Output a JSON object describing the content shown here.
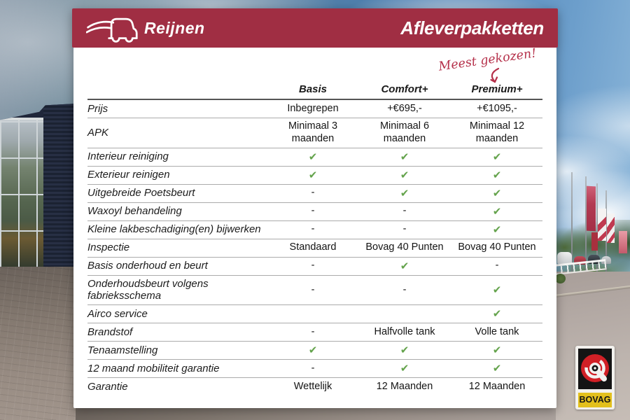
{
  "header": {
    "brand": "Reijnen",
    "title": "Afleverpakketten"
  },
  "annotation": {
    "text": "Meest gekozen!"
  },
  "table": {
    "columns": [
      "Basis",
      "Comfort+",
      "Premium+"
    ],
    "rows": [
      {
        "label": "Prijs",
        "values": [
          "Inbegrepen",
          "+€695,-",
          "+€1095,-"
        ]
      },
      {
        "label": "APK",
        "values": [
          "Minimaal 3 maanden",
          "Minimaal 6 maanden",
          "Minimaal 12 maanden"
        ]
      },
      {
        "label": "Interieur reiniging",
        "values": [
          "✔",
          "✔",
          "✔"
        ]
      },
      {
        "label": "Exterieur reinigen",
        "values": [
          "✔",
          "✔",
          "✔"
        ]
      },
      {
        "label": "Uitgebreide Poetsbeurt",
        "values": [
          "-",
          "✔",
          "✔"
        ]
      },
      {
        "label": "Waxoyl behandeling",
        "values": [
          "-",
          "-",
          "✔"
        ]
      },
      {
        "label": "Kleine lakbeschadiging(en) bijwerken",
        "values": [
          "-",
          "-",
          "✔"
        ]
      },
      {
        "label": "Inspectie",
        "values": [
          "Standaard",
          "Bovag 40 Punten",
          "Bovag 40 Punten"
        ]
      },
      {
        "label": "Basis onderhoud en beurt",
        "values": [
          "-",
          "✔",
          "-"
        ]
      },
      {
        "label": "Onderhoudsbeurt volgens fabrieksschema",
        "values": [
          "-",
          "-",
          "✔"
        ]
      },
      {
        "label": "Airco service",
        "values": [
          "",
          "",
          "✔"
        ]
      },
      {
        "label": "Brandstof",
        "values": [
          "-",
          "Halfvolle tank",
          "Volle tank"
        ]
      },
      {
        "label": "Tenaamstelling",
        "values": [
          "✔",
          "✔",
          "✔"
        ]
      },
      {
        "label": "12 maand mobiliteit garantie",
        "values": [
          "-",
          "✔",
          "✔"
        ]
      },
      {
        "label": "Garantie",
        "values": [
          "Wettelijk",
          "12 Maanden",
          "12 Maanden"
        ]
      }
    ]
  },
  "bovag": {
    "label": "BOVAG"
  },
  "icons": {
    "checkmark": "✔",
    "dash": "-"
  },
  "colors": {
    "header_red": "#a02e43",
    "annotation_red": "#b5304a",
    "check_green": "#64a34c",
    "bovag_red": "#d12026",
    "bovag_yellow": "#e3c01c"
  }
}
